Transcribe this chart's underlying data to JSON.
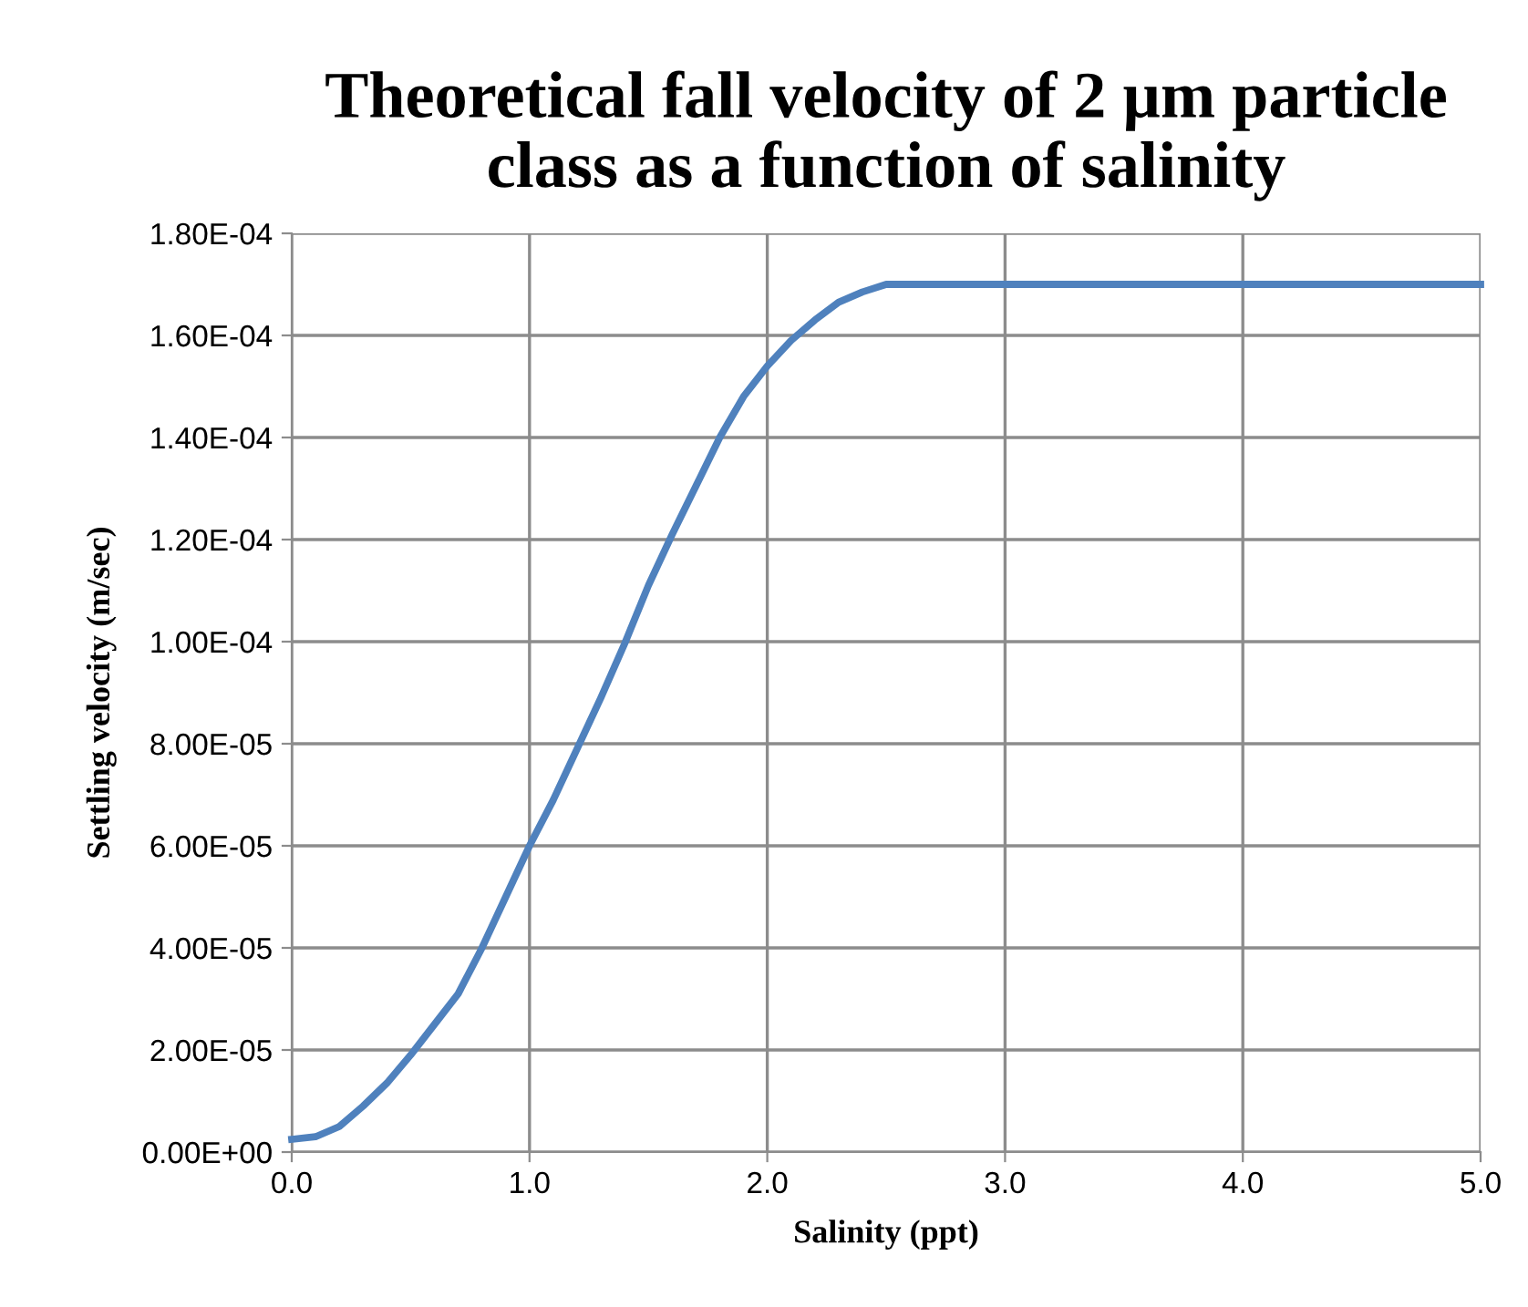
{
  "chart_data": {
    "type": "line",
    "title": "Theoretical fall velocity of 2 µm particle\nclass as a function of salinity",
    "xlabel": "Salinity (ppt)",
    "ylabel": "Settling velocity (m/sec)",
    "x": [
      0,
      0.1,
      0.2,
      0.3,
      0.4,
      0.5,
      0.6,
      0.7,
      0.8,
      0.9,
      1.0,
      1.1,
      1.2,
      1.3,
      1.4,
      1.5,
      1.6,
      1.7,
      1.8,
      1.9,
      2.0,
      2.1,
      2.2,
      2.3,
      2.4,
      2.5,
      3.0,
      4.0,
      5.0
    ],
    "series": [
      {
        "color": "#4f81bd",
        "values": [
          2.5e-06,
          3e-06,
          5e-06,
          9e-06,
          1.35e-05,
          1.9e-05,
          2.5e-05,
          3.1e-05,
          4e-05,
          5e-05,
          6e-05,
          6.9e-05,
          7.9e-05,
          8.9e-05,
          9.96e-05,
          0.000111,
          0.000121,
          0.0001305,
          0.00014,
          0.000148,
          0.000154,
          0.000159,
          0.000163,
          0.0001665,
          0.0001685,
          0.00017,
          0.00017,
          0.00017,
          0.00017
        ]
      }
    ],
    "xlim": [
      0,
      5
    ],
    "xticks": [
      {
        "value": 0,
        "label": "0.0"
      },
      {
        "value": 1,
        "label": "1.0"
      },
      {
        "value": 2,
        "label": "2.0"
      },
      {
        "value": 3,
        "label": "3.0"
      },
      {
        "value": 4,
        "label": "4.0"
      },
      {
        "value": 5,
        "label": "5.0"
      }
    ],
    "ylim": [
      0,
      0.00018
    ],
    "yticks": [
      {
        "value": 0,
        "label": "0.00E+00"
      },
      {
        "value": 2e-05,
        "label": "2.00E-05"
      },
      {
        "value": 4e-05,
        "label": "4.00E-05"
      },
      {
        "value": 6e-05,
        "label": "6.00E-05"
      },
      {
        "value": 8e-05,
        "label": "8.00E-05"
      },
      {
        "value": 0.0001,
        "label": "1.00E-04"
      },
      {
        "value": 0.00012,
        "label": "1.20E-04"
      },
      {
        "value": 0.00014,
        "label": "1.40E-04"
      },
      {
        "value": 0.00016,
        "label": "1.60E-04"
      },
      {
        "value": 0.00018,
        "label": "1.80E-04"
      }
    ],
    "grid": true,
    "marker": "none",
    "line_style": "solid",
    "legend": false
  }
}
